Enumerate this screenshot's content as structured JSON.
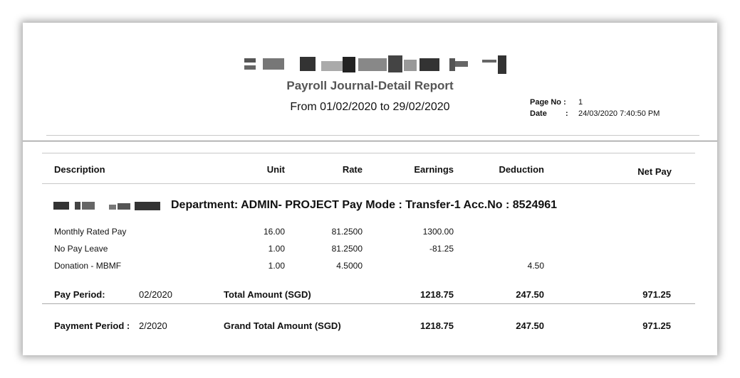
{
  "report": {
    "title": "Payroll Journal-Detail Report",
    "period": "From 01/02/2020 to 29/02/2020",
    "page_label": "Page No :",
    "page_value": "1",
    "date_label": "Date",
    "date_colon": ":",
    "date_value": "24/03/2020 7:40:50 PM"
  },
  "columns": {
    "description": "Description",
    "unit": "Unit",
    "rate": "Rate",
    "earnings": "Earnings",
    "deduction": "Deduction",
    "net_pay": "Net Pay"
  },
  "employee": {
    "dept_line": "Department: ADMIN- PROJECT  Pay Mode : Transfer-1  Acc.No : 8524961"
  },
  "rows": [
    {
      "description": "Monthly Rated Pay",
      "unit": "16.00",
      "rate": "81.2500",
      "earnings": "1300.00",
      "deduction": ""
    },
    {
      "description": "No Pay Leave",
      "unit": "1.00",
      "rate": "81.2500",
      "earnings": "-81.25",
      "deduction": ""
    },
    {
      "description": "Donation - MBMF",
      "unit": "1.00",
      "rate": "4.5000",
      "earnings": "",
      "deduction": "4.50"
    }
  ],
  "subtotal": {
    "label": "Pay Period:",
    "period": "02/2020",
    "total_label": "Total Amount (SGD)",
    "earnings": "1218.75",
    "deduction": "247.50",
    "net_pay": "971.25"
  },
  "grand_total": {
    "label": "Payment Period :",
    "period": "2/2020",
    "total_label": "Grand Total Amount (SGD)",
    "earnings": "1218.75",
    "deduction": "247.50",
    "net_pay": "971.25"
  }
}
